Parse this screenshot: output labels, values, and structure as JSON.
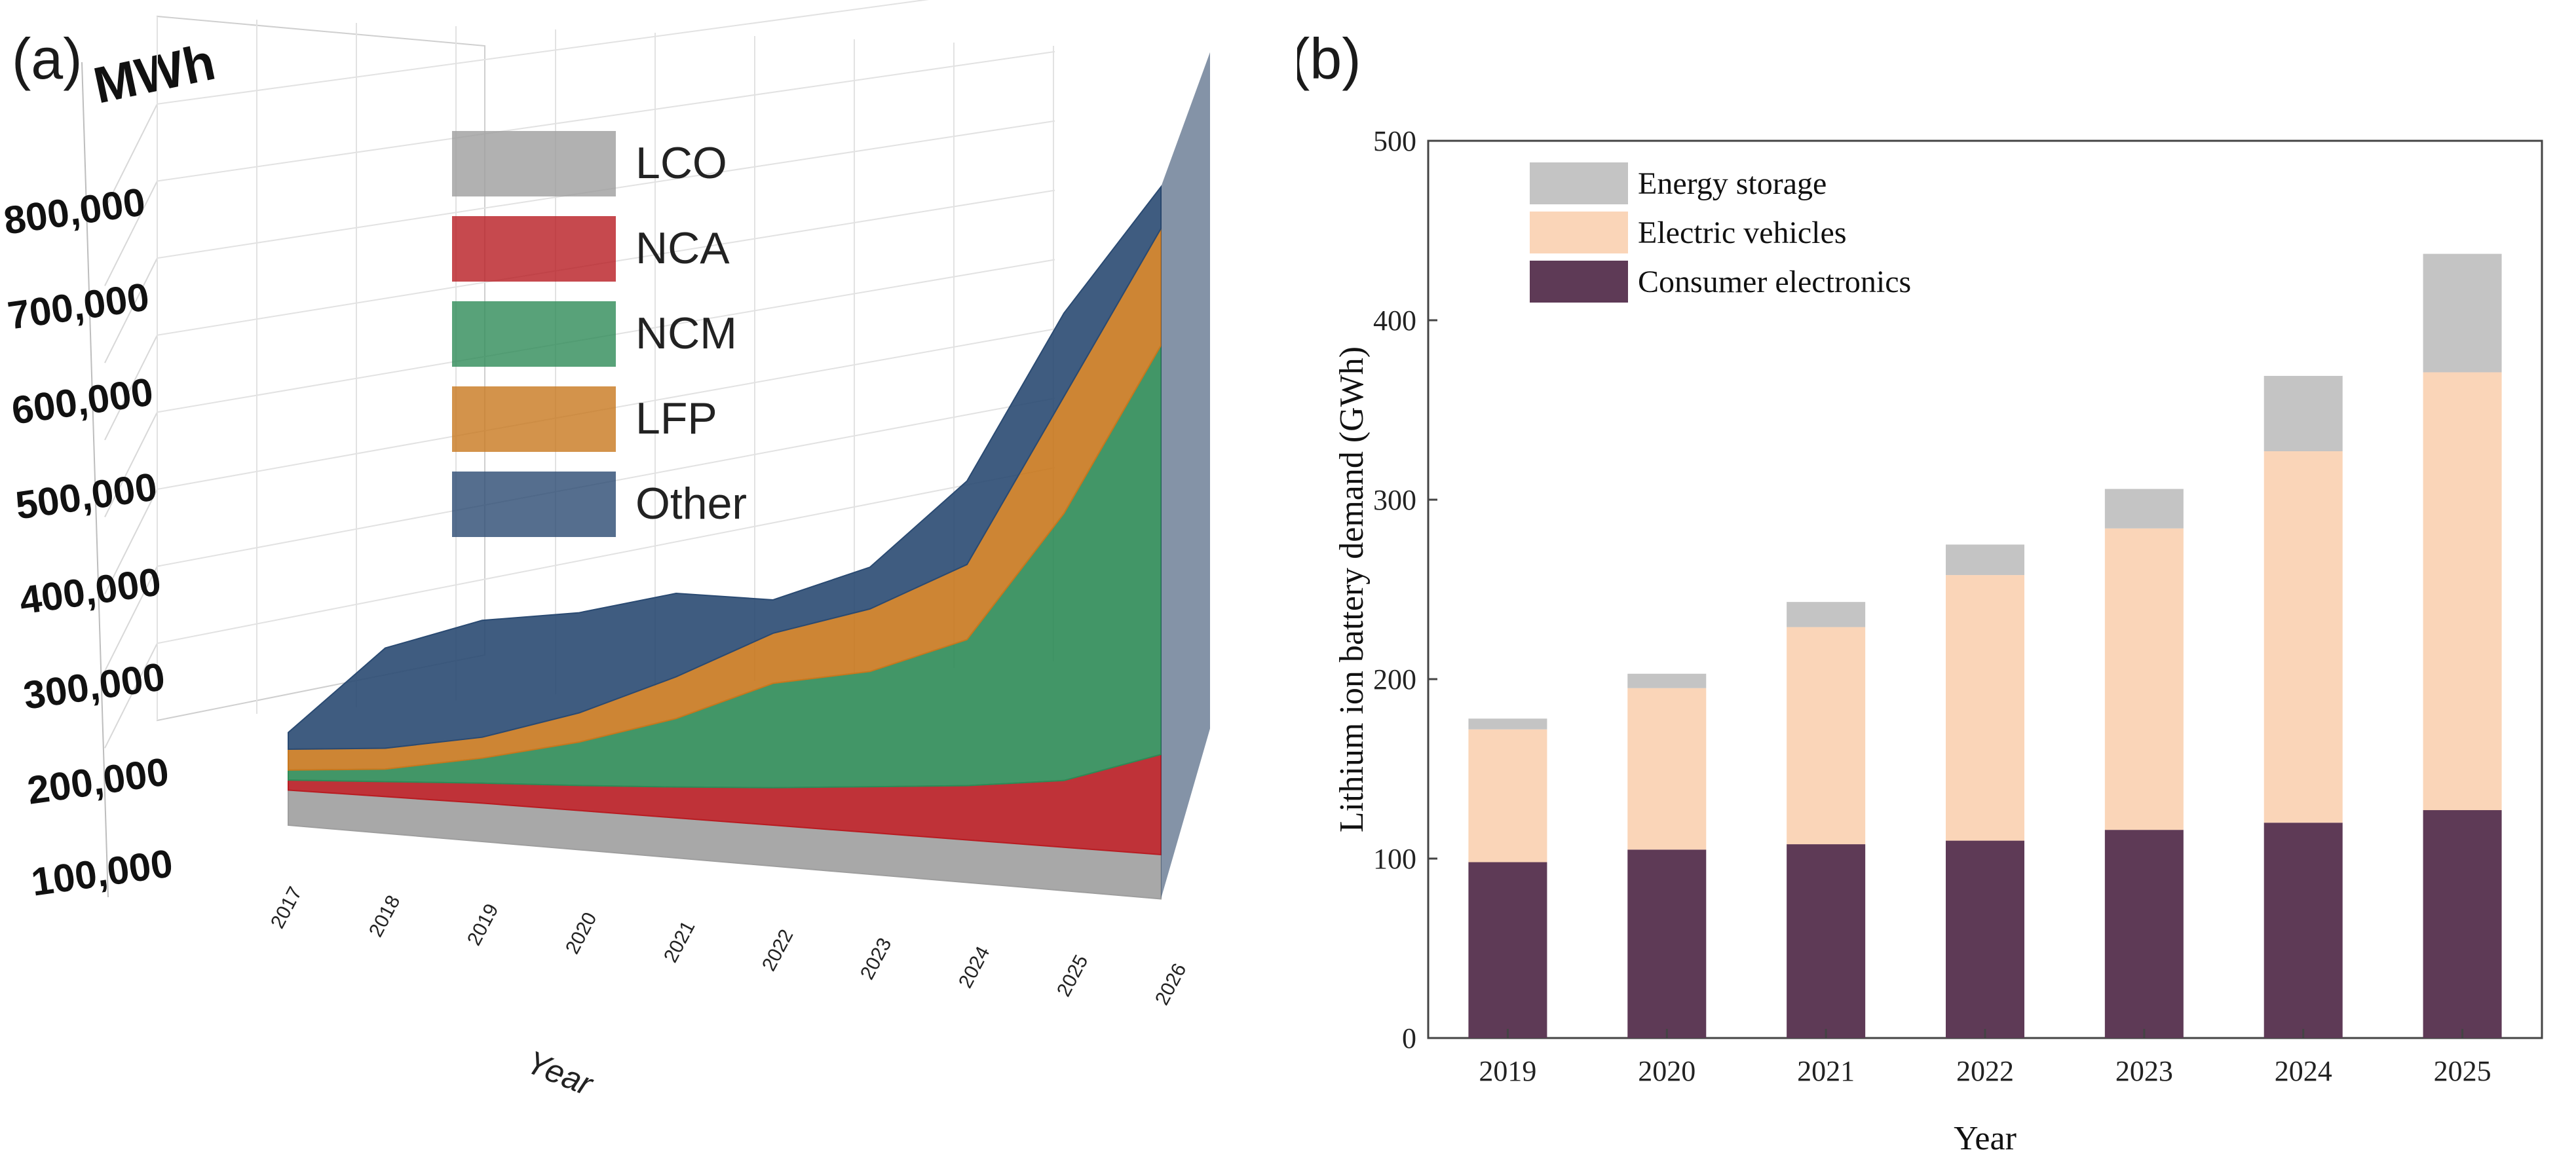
{
  "chart_data": [
    {
      "id": "a",
      "panel_label": "(a)",
      "type": "area",
      "stacked": true,
      "projection": "3d",
      "unit_label": "MWh",
      "xlabel": "Year",
      "x": [
        "2017",
        "2018",
        "2019",
        "2020",
        "2021",
        "2022",
        "2023",
        "2024",
        "2025",
        "2026"
      ],
      "y_tick_labels": [
        "100,000",
        "200,000",
        "300,000",
        "400,000",
        "500,000",
        "600,000",
        "700,000",
        "800,000"
      ],
      "ylim": [
        0,
        850000
      ],
      "series": [
        {
          "name": "LCO",
          "color": "#9e9e9e",
          "values": [
            42000,
            44000,
            46000,
            47000,
            48000,
            49000,
            50000,
            51000,
            52000,
            53000
          ]
        },
        {
          "name": "NCA",
          "color": "#b81c22",
          "values": [
            12000,
            18000,
            24000,
            30000,
            37000,
            45000,
            55000,
            65000,
            80000,
            120000
          ]
        },
        {
          "name": "NCM",
          "color": "#2e8b57",
          "values": [
            12000,
            15000,
            30000,
            52000,
            82000,
            125000,
            138000,
            175000,
            320000,
            490000
          ]
        },
        {
          "name": "LFP",
          "color": "#c8781e",
          "values": [
            25000,
            25000,
            25000,
            35000,
            50000,
            60000,
            75000,
            90000,
            140000,
            140000
          ]
        },
        {
          "name": "Other",
          "color": "#2a4a72",
          "values": [
            20000,
            120000,
            140000,
            120000,
            100000,
            40000,
            50000,
            100000,
            100000,
            50000
          ]
        }
      ],
      "legend": [
        "LCO",
        "NCA",
        "NCM",
        "LFP",
        "Other"
      ]
    },
    {
      "id": "b",
      "panel_label": "(b)",
      "type": "bar",
      "stacked": true,
      "xlabel": "Year",
      "ylabel": "Lithium ion battery demand (GWh)",
      "categories": [
        "2019",
        "2020",
        "2021",
        "2022",
        "2023",
        "2024",
        "2025"
      ],
      "ylim": [
        0,
        500
      ],
      "yticks": [
        0,
        100,
        200,
        300,
        400,
        500
      ],
      "legend_order": [
        "Energy storage",
        "Electric vehicles",
        "Consumer electronics"
      ],
      "series": [
        {
          "name": "Consumer electronics",
          "color": "#5e3a56",
          "values": [
            98,
            105,
            108,
            110,
            116,
            120,
            127
          ]
        },
        {
          "name": "Electric vehicles",
          "color": "#fad5b8",
          "values": [
            74,
            90,
            121,
            148,
            168,
            207,
            244
          ]
        },
        {
          "name": "Energy storage",
          "color": "#c4c4c4",
          "values": [
            6,
            8,
            14,
            17,
            22,
            42,
            66
          ]
        }
      ]
    }
  ]
}
